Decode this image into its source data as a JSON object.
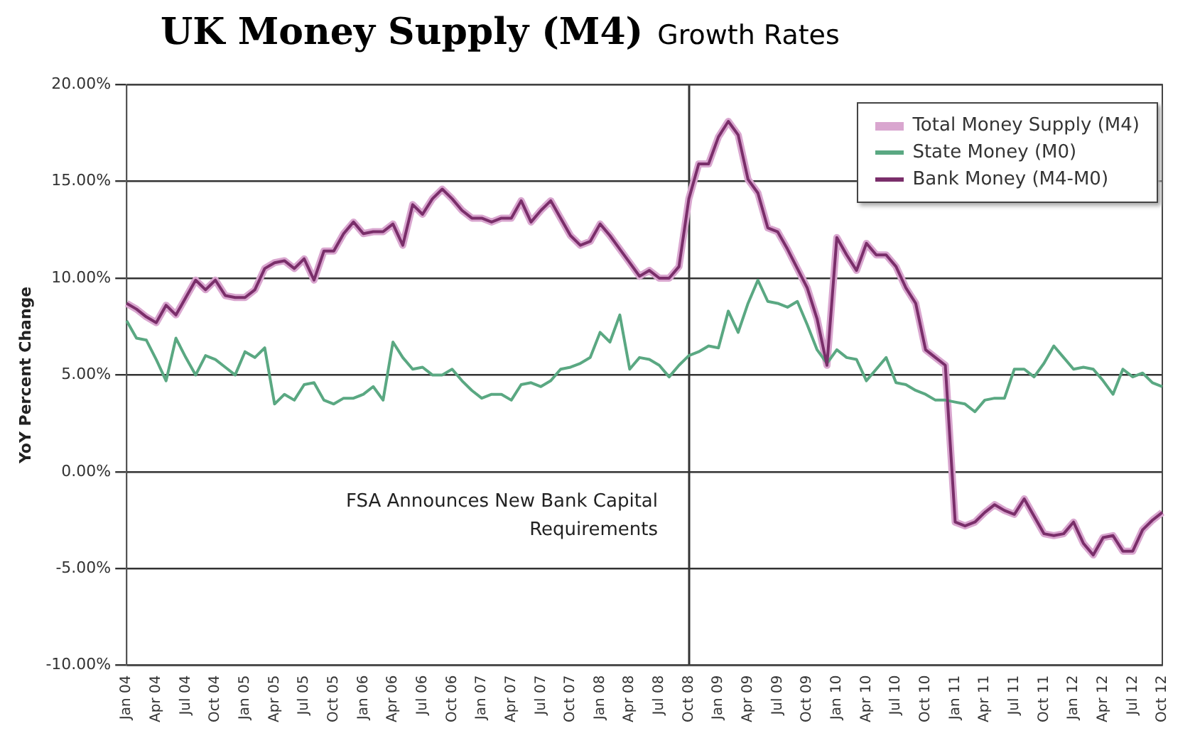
{
  "chart_data": {
    "type": "line",
    "title": "UK Money Supply (M4)",
    "subtitle": "Growth Rates",
    "ylabel": "YoY Percent Change",
    "categories": [
      "Jan 04",
      null,
      null,
      "Apr 04",
      null,
      null,
      "Jul 04",
      null,
      null,
      "Oct 04",
      null,
      null,
      "Jan 05",
      null,
      null,
      "Apr 05",
      null,
      null,
      "Jul 05",
      null,
      null,
      "Oct 05",
      null,
      null,
      "Jan 06",
      null,
      null,
      "Apr 06",
      null,
      null,
      "Jul 06",
      null,
      null,
      "Oct 06",
      null,
      null,
      "Jan 07",
      null,
      null,
      "Apr 07",
      null,
      null,
      "Jul 07",
      null,
      null,
      "Oct 07",
      null,
      null,
      "Jan 08",
      null,
      null,
      "Apr 08",
      null,
      null,
      "Jul 08",
      null,
      null,
      "Oct 08",
      null,
      null,
      "Jan 09",
      null,
      null,
      "Apr 09",
      null,
      null,
      "Jul 09",
      null,
      null,
      "Oct 09",
      null,
      null,
      "Jan 10",
      null,
      null,
      "Apr 10",
      null,
      null,
      "Jul 10",
      null,
      null,
      "Oct 10",
      null,
      null,
      "Jan 11",
      null,
      null,
      "Apr 11",
      null,
      null,
      "Jul 11",
      null,
      null,
      "Oct 11",
      null,
      null,
      "Jan 12",
      null,
      null,
      "Apr 12",
      null,
      null,
      "Jul 12",
      null,
      null,
      "Oct 12"
    ],
    "series": [
      {
        "name": "Total Money Supply (M4)",
        "color": "#d9a6cf",
        "values": [
          8.7,
          8.4,
          8.0,
          7.7,
          8.6,
          8.1,
          9.0,
          9.9,
          9.4,
          9.9,
          9.1,
          9.0,
          9.0,
          9.4,
          10.5,
          10.8,
          10.9,
          10.5,
          11.0,
          9.9,
          11.4,
          11.4,
          12.3,
          12.9,
          12.3,
          12.4,
          12.4,
          12.8,
          11.7,
          13.8,
          13.3,
          14.1,
          14.6,
          14.1,
          13.5,
          13.1,
          13.1,
          12.9,
          13.1,
          13.1,
          14.0,
          12.9,
          13.5,
          14.0,
          13.1,
          12.2,
          11.7,
          11.9,
          12.8,
          12.2,
          11.5,
          10.8,
          10.1,
          10.4,
          10.0,
          10.0,
          10.6,
          14.1,
          15.9,
          15.9,
          17.3,
          18.1,
          17.4,
          15.1,
          14.4,
          12.6,
          12.4,
          11.5,
          10.5,
          9.5,
          7.9,
          5.5,
          12.1,
          11.2,
          10.4,
          11.8,
          11.2,
          11.2,
          10.6,
          9.5,
          8.7,
          6.3,
          5.9,
          5.5,
          -2.6,
          -2.8,
          -2.6,
          -2.1,
          -1.7,
          -2.0,
          -2.2,
          -1.4,
          -2.3,
          -3.2,
          -3.3,
          -3.2,
          -2.6,
          -3.7,
          -4.3,
          -3.4,
          -3.3,
          -4.1,
          -4.1,
          -3.0,
          -2.5,
          -2.1
        ]
      },
      {
        "name": "State Money (M0)",
        "color": "#5aa882",
        "values": [
          7.8,
          6.9,
          6.8,
          5.8,
          4.7,
          6.9,
          5.9,
          5.0,
          6.0,
          5.8,
          5.4,
          5.0,
          6.2,
          5.9,
          6.4,
          3.5,
          4.0,
          3.7,
          4.5,
          4.6,
          3.7,
          3.5,
          3.8,
          3.8,
          4.0,
          4.4,
          3.7,
          6.7,
          5.9,
          5.3,
          5.4,
          5.0,
          5.0,
          5.3,
          4.7,
          4.2,
          3.8,
          4.0,
          4.0,
          3.7,
          4.5,
          4.6,
          4.4,
          4.7,
          5.3,
          5.4,
          5.6,
          5.9,
          7.2,
          6.7,
          8.1,
          5.3,
          5.9,
          5.8,
          5.5,
          4.9,
          5.5,
          6.0,
          6.2,
          6.5,
          6.4,
          8.3,
          7.2,
          8.7,
          9.9,
          8.8,
          8.7,
          8.5,
          8.8,
          7.6,
          6.3,
          5.6,
          6.3,
          5.9,
          5.8,
          4.7,
          5.3,
          5.9,
          4.6,
          4.5,
          4.2,
          4.0,
          3.7,
          3.7,
          3.6,
          3.5,
          3.1,
          3.7,
          3.8,
          3.8,
          5.3,
          5.3,
          4.9,
          5.6,
          6.5,
          5.9,
          5.3,
          5.4,
          5.3,
          4.7,
          4.0,
          5.3,
          4.9,
          5.1,
          4.6,
          4.4
        ]
      },
      {
        "name": "Bank Money (M4-M0)",
        "color": "#7a2e6a",
        "values": [
          8.7,
          8.4,
          8.0,
          7.7,
          8.6,
          8.1,
          9.0,
          9.9,
          9.4,
          9.9,
          9.1,
          9.0,
          9.0,
          9.4,
          10.5,
          10.8,
          10.9,
          10.5,
          11.0,
          9.9,
          11.4,
          11.4,
          12.3,
          12.9,
          12.3,
          12.4,
          12.4,
          12.8,
          11.7,
          13.8,
          13.3,
          14.1,
          14.6,
          14.1,
          13.5,
          13.1,
          13.1,
          12.9,
          13.1,
          13.1,
          14.0,
          12.9,
          13.5,
          14.0,
          13.1,
          12.2,
          11.7,
          11.9,
          12.8,
          12.2,
          11.5,
          10.8,
          10.1,
          10.4,
          10.0,
          10.0,
          10.6,
          14.1,
          15.9,
          15.9,
          17.3,
          18.1,
          17.4,
          15.1,
          14.4,
          12.6,
          12.4,
          11.5,
          10.5,
          9.5,
          7.9,
          5.5,
          12.1,
          11.2,
          10.4,
          11.8,
          11.2,
          11.2,
          10.6,
          9.5,
          8.7,
          6.3,
          5.9,
          5.5,
          -2.6,
          -2.8,
          -2.6,
          -2.1,
          -1.7,
          -2.0,
          -2.2,
          -1.4,
          -2.3,
          -3.2,
          -3.3,
          -3.2,
          -2.6,
          -3.7,
          -4.3,
          -3.4,
          -3.3,
          -4.1,
          -4.1,
          -3.0,
          -2.5,
          -2.1
        ]
      }
    ],
    "ylim": [
      -10,
      20
    ],
    "yticks": [
      {
        "value": -10,
        "label": "-10.00%"
      },
      {
        "value": -5,
        "label": "-5.00%"
      },
      {
        "value": 0,
        "label": "0.00%"
      },
      {
        "value": 5,
        "label": "5.00%"
      },
      {
        "value": 10,
        "label": "10.00%"
      },
      {
        "value": 15,
        "label": "15.00%"
      },
      {
        "value": 20,
        "label": "20.00%"
      }
    ],
    "ref_lines": [
      {
        "axis": "x",
        "value": "Oct 08",
        "label": "FSA Announces New Bank Capital Requirements",
        "color": "#333333"
      }
    ],
    "grid": "y",
    "legend": "top right",
    "marker": "none",
    "line_style": "solid"
  }
}
